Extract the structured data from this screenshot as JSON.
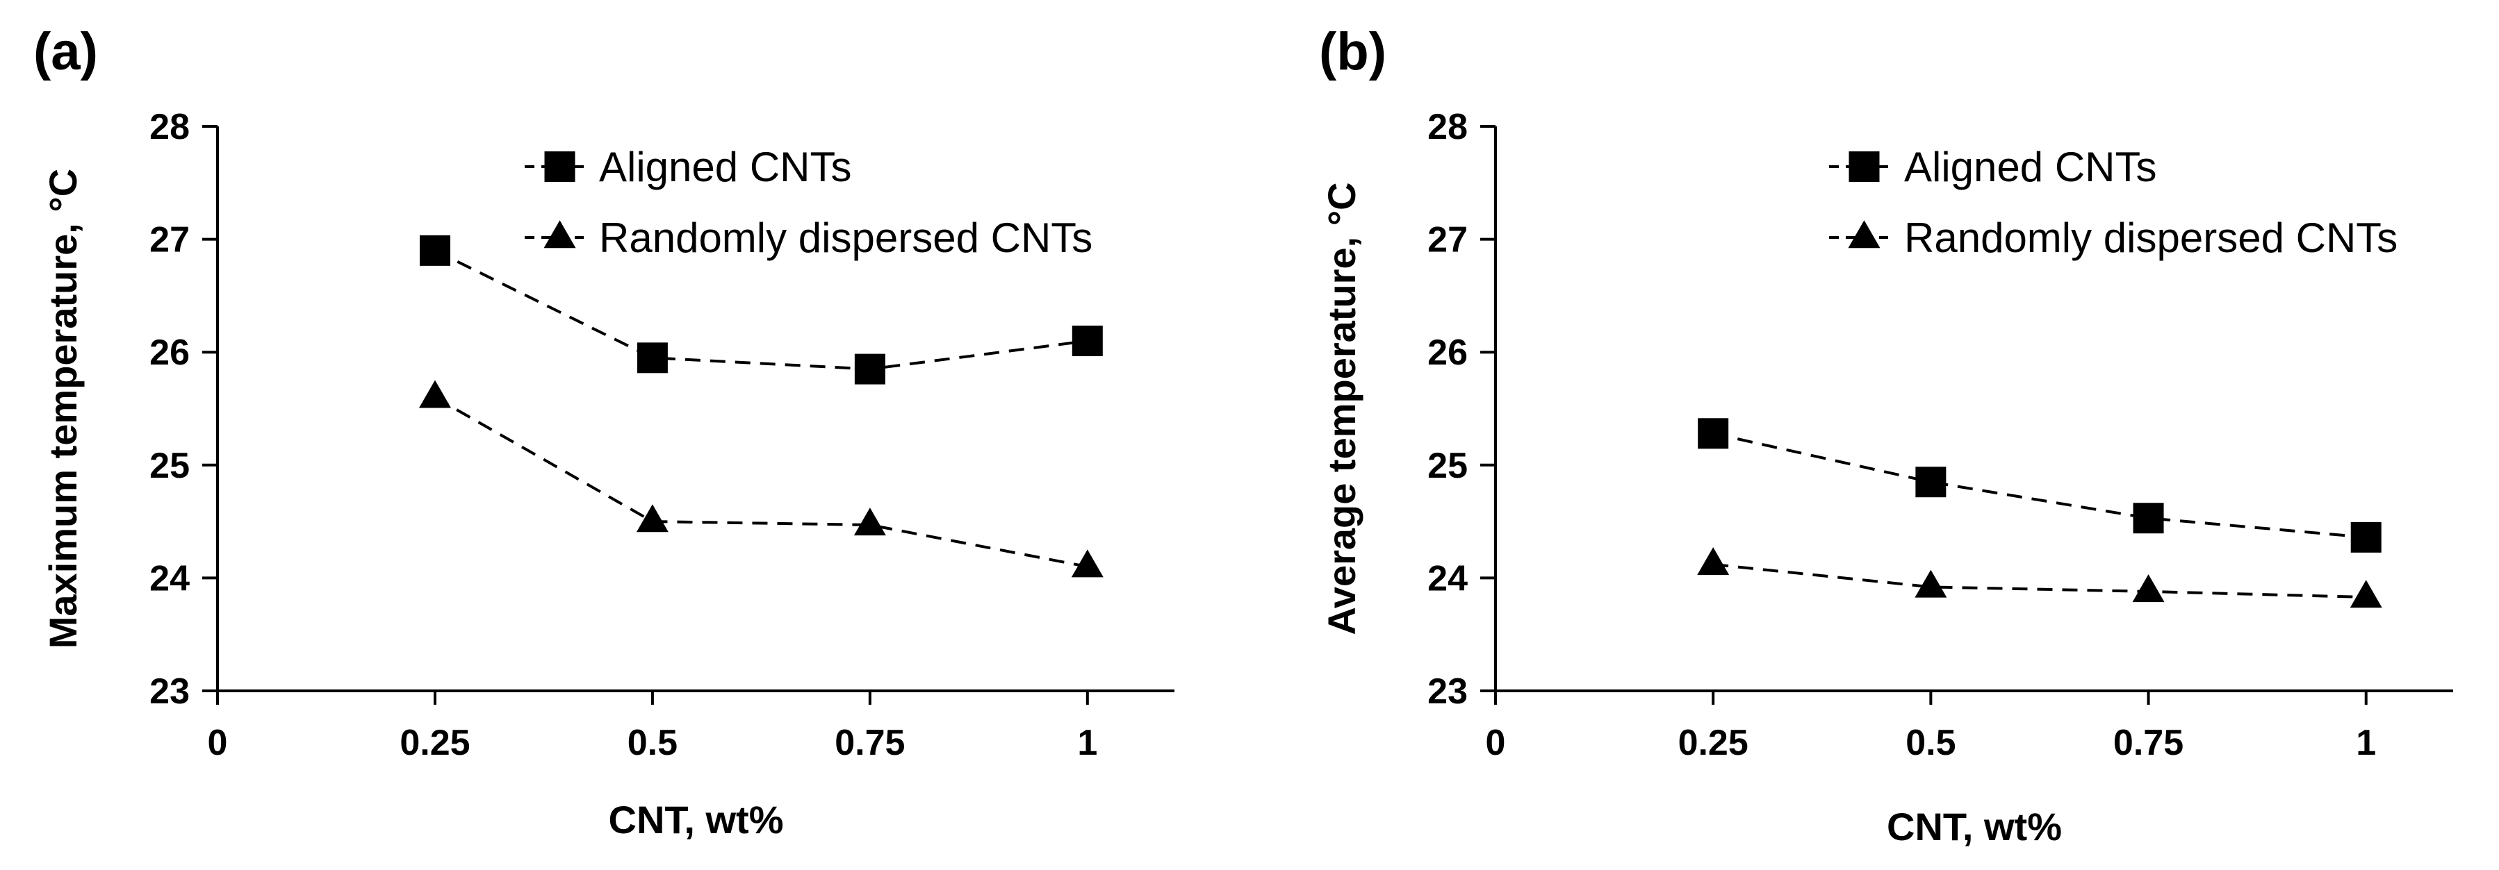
{
  "chart_data": [
    {
      "panel_label": "(a)",
      "type": "line",
      "xlabel": "CNT, wt%",
      "ylabel": "Maximum temperature, °C",
      "xlim": [
        0,
        1.1
      ],
      "ylim": [
        23,
        28
      ],
      "x_ticks": [
        0,
        0.25,
        0.5,
        0.75,
        1
      ],
      "x_tick_labels": [
        "0",
        "0.25",
        "0.5",
        "0.75",
        "1"
      ],
      "y_ticks": [
        23,
        24,
        25,
        26,
        27,
        28
      ],
      "y_tick_labels": [
        "23",
        "24",
        "25",
        "26",
        "27",
        "28"
      ],
      "grid": false,
      "legend_position": "top-right",
      "series": [
        {
          "name": "Aligned CNTs",
          "marker": "square",
          "x": [
            0.25,
            0.5,
            0.75,
            1
          ],
          "values": [
            26.9,
            25.95,
            25.85,
            26.1
          ]
        },
        {
          "name": "Randomly dispersed CNTs",
          "marker": "triangle",
          "x": [
            0.25,
            0.5,
            0.75,
            1
          ],
          "values": [
            25.6,
            24.5,
            24.47,
            24.1
          ]
        }
      ]
    },
    {
      "panel_label": "(b)",
      "type": "line",
      "xlabel": "CNT, wt%",
      "ylabel": "Average temperature, °C",
      "xlim": [
        0,
        1.1
      ],
      "ylim": [
        23,
        28
      ],
      "x_ticks": [
        0,
        0.25,
        0.5,
        0.75,
        1
      ],
      "x_tick_labels": [
        "0",
        "0.25",
        "0.5",
        "0.75",
        "1"
      ],
      "y_ticks": [
        23,
        24,
        25,
        26,
        27,
        28
      ],
      "y_tick_labels": [
        "23",
        "24",
        "25",
        "26",
        "27",
        "28"
      ],
      "grid": false,
      "legend_position": "top-right",
      "series": [
        {
          "name": "Aligned CNTs",
          "marker": "square",
          "x": [
            0.25,
            0.5,
            0.75,
            1
          ],
          "values": [
            25.28,
            24.85,
            24.53,
            24.36
          ]
        },
        {
          "name": "Randomly dispersed CNTs",
          "marker": "triangle",
          "x": [
            0.25,
            0.5,
            0.75,
            1
          ],
          "values": [
            24.12,
            23.92,
            23.88,
            23.83
          ]
        }
      ]
    }
  ]
}
